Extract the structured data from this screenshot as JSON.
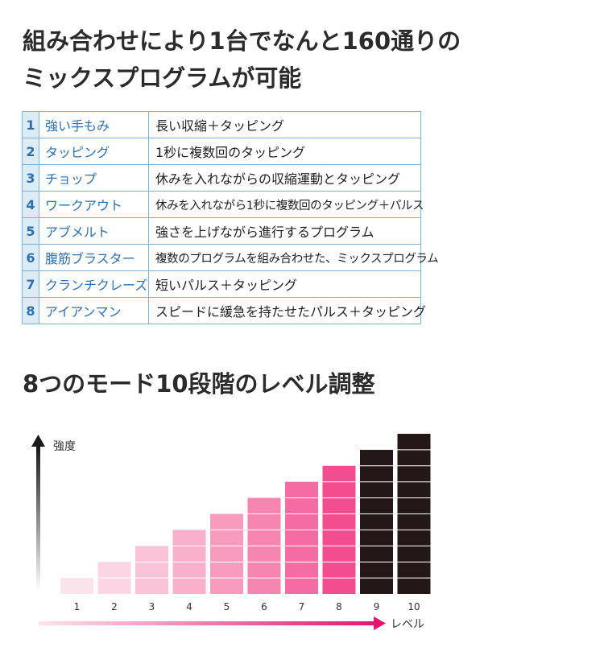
{
  "heading1": {
    "line1": "組み合わせにより1台でなんと160通りの",
    "line2": "ミックスプログラムが可能"
  },
  "modes": [
    {
      "num": "1",
      "name": "強い手もみ",
      "desc": "長い収縮＋タッピング"
    },
    {
      "num": "2",
      "name": "タッピング",
      "desc": "1秒に複数回のタッピング"
    },
    {
      "num": "3",
      "name": "チョップ",
      "desc": "休みを入れながらの収縮運動とタッピング"
    },
    {
      "num": "4",
      "name": "ワークアウト",
      "desc": "休みを入れながら1秒に複数回のタッピング＋パルス"
    },
    {
      "num": "5",
      "name": "アブメルト",
      "desc": "強さを上げながら進行するプログラム"
    },
    {
      "num": "6",
      "name": "腹筋ブラスター",
      "desc": "複数のプログラムを組み合わせた、ミックスプログラム"
    },
    {
      "num": "7",
      "name": "クランチクレーズ",
      "desc": "短いパルス＋タッピング"
    },
    {
      "num": "8",
      "name": "アイアンマン",
      "desc": "スピードに緩急を持たせたパルス＋タッピング"
    }
  ],
  "heading2": "8つのモード10段階のレベル調整",
  "chart_data": {
    "type": "bar",
    "ylabel": "強度",
    "xlabel": "レベル",
    "categories": [
      "1",
      "2",
      "3",
      "4",
      "5",
      "6",
      "7",
      "8",
      "9",
      "10"
    ],
    "values": [
      1,
      2,
      3,
      4,
      5,
      6,
      7,
      8,
      9,
      10
    ],
    "ylim": [
      0,
      10
    ],
    "grid": false,
    "colors": [
      "#fbe3ec",
      "#fbd5e4",
      "#fac3d8",
      "#f9b0cb",
      "#f89bbd",
      "#f685b0",
      "#f46ca1",
      "#f14e8f",
      "#231815",
      "#231815"
    ],
    "axis_colors": {
      "y_arrow": "#1a1a1a",
      "x_arrow": "#e4146f"
    }
  }
}
